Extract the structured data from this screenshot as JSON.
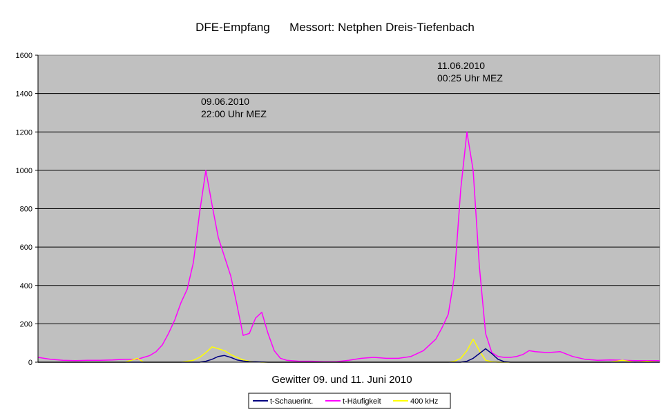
{
  "chart_data": {
    "type": "line",
    "title": "DFE-Empfang      Messort: Netphen Dreis-Tiefenbach",
    "xlabel": "Gewitter 09. und 11. Juni 2010",
    "ylabel": "",
    "ylim": [
      0,
      1600
    ],
    "yticks": [
      "0",
      "200",
      "400",
      "600",
      "800",
      "1000",
      "1200",
      "1400",
      "1600"
    ],
    "grid": true,
    "legend_position": "bottom-center",
    "plot_background": "#c0c0c0",
    "annotations": [
      {
        "line1": "09.06.2010",
        "line2": "22:00 Uhr MEZ"
      },
      {
        "line1": "11.06.2010",
        "line2": "00:25 Uhr MEZ"
      }
    ],
    "x": [
      0,
      2,
      4,
      6,
      8,
      10,
      12,
      14,
      16,
      17,
      18,
      19,
      20,
      21,
      22,
      23,
      24,
      25,
      26,
      27,
      28,
      29,
      30,
      31,
      32,
      33,
      34,
      35,
      36,
      37,
      38,
      39,
      40,
      42,
      44,
      46,
      48,
      50,
      52,
      54,
      56,
      58,
      60,
      62,
      64,
      65,
      66,
      67,
      68,
      69,
      70,
      71,
      72,
      73,
      74,
      75,
      76,
      77,
      78,
      79,
      80,
      82,
      84,
      86,
      88,
      90,
      92,
      94,
      96,
      98,
      100
    ],
    "series": [
      {
        "name": "t-Schauerint.",
        "color": "#000080",
        "values": [
          0,
          0,
          0,
          0,
          0,
          0,
          0,
          0,
          0,
          0,
          0,
          0,
          0,
          0,
          0,
          0,
          0,
          0,
          0,
          5,
          15,
          30,
          35,
          25,
          12,
          6,
          3,
          2,
          1,
          0,
          0,
          0,
          0,
          0,
          0,
          0,
          0,
          0,
          0,
          0,
          0,
          0,
          0,
          0,
          0,
          0,
          0,
          0,
          0,
          5,
          20,
          45,
          70,
          45,
          15,
          3,
          0,
          0,
          0,
          0,
          0,
          0,
          0,
          0,
          0,
          0,
          0,
          0,
          0,
          0,
          0
        ]
      },
      {
        "name": "t-Häufigkeit",
        "color": "#ff00ff",
        "values": [
          25,
          15,
          10,
          8,
          10,
          10,
          12,
          15,
          15,
          25,
          35,
          55,
          90,
          150,
          220,
          310,
          380,
          520,
          780,
          1000,
          820,
          650,
          550,
          450,
          300,
          140,
          150,
          230,
          260,
          150,
          60,
          20,
          10,
          5,
          5,
          3,
          3,
          10,
          20,
          25,
          20,
          20,
          30,
          60,
          120,
          180,
          250,
          450,
          900,
          1200,
          1000,
          500,
          150,
          50,
          30,
          25,
          25,
          30,
          40,
          60,
          55,
          50,
          55,
          30,
          15,
          10,
          12,
          10,
          8,
          8,
          8
        ]
      },
      {
        "name": "400 kHz",
        "color": "#ffff00",
        "values": [
          0,
          0,
          0,
          0,
          0,
          0,
          0,
          0,
          20,
          0,
          0,
          0,
          0,
          0,
          0,
          0,
          5,
          10,
          25,
          50,
          80,
          70,
          60,
          40,
          25,
          12,
          5,
          2,
          0,
          0,
          0,
          0,
          0,
          0,
          0,
          0,
          0,
          0,
          0,
          0,
          0,
          0,
          0,
          0,
          0,
          0,
          0,
          5,
          20,
          60,
          120,
          60,
          10,
          2,
          0,
          0,
          0,
          0,
          0,
          0,
          0,
          0,
          0,
          0,
          0,
          0,
          0,
          10,
          0,
          5,
          0
        ]
      }
    ]
  }
}
